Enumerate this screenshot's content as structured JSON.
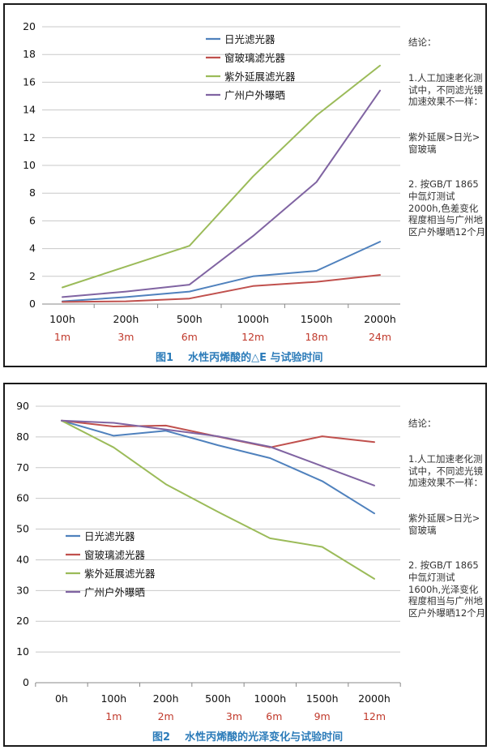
{
  "charts_meta": {
    "series_colors": [
      "#4f81bd",
      "#c0504d",
      "#9bbb59",
      "#8064a2"
    ],
    "sub_label_color": "#c0392b",
    "caption_color": "#2b7bb9"
  },
  "notes": [
    {
      "heading": "结论：",
      "lines": [
        "1.人工加速老化测试中，不同滤光镜加速效果不一样：",
        "紫外延展>日光>窗玻璃",
        "2. 按GB/T 1865中氙灯测试2000h,色差变化程度相当与广州地区户外曝晒12个月"
      ]
    },
    {
      "heading": "结论：",
      "lines": [
        "1.人工加速老化测试中，不同滤光镜加速效果不一样：",
        "紫外延展>日光>窗玻璃",
        "2. 按GB/T 1865中氙灯测试1600h,光泽变化程度相当与广州地区户外曝晒12个月"
      ]
    }
  ],
  "chart_data": [
    {
      "type": "line",
      "title": "图1    水性丙烯酸的△E 与试验时间",
      "categories": [
        "100h",
        "200h",
        "500h",
        "1000h",
        "1500h",
        "2000h"
      ],
      "category_sublabels": [
        "1m",
        "3m",
        "6m",
        "12m",
        "18m",
        "24m"
      ],
      "ylim": [
        0,
        20
      ],
      "yticks": [
        0,
        2,
        4,
        6,
        8,
        10,
        12,
        14,
        16,
        18,
        20
      ],
      "grid": true,
      "legend_position": "top-left",
      "series": [
        {
          "name": "日光滤光器",
          "values": [
            0.2,
            0.5,
            0.9,
            2.0,
            2.4,
            4.5
          ]
        },
        {
          "name": "窗玻璃滤光器",
          "values": [
            0.15,
            0.2,
            0.4,
            1.3,
            1.6,
            2.1
          ]
        },
        {
          "name": "紫外延展滤光器",
          "values": [
            1.2,
            2.7,
            4.2,
            9.2,
            13.6,
            17.2
          ]
        },
        {
          "name": "广州户外曝晒",
          "values": [
            0.5,
            0.9,
            1.4,
            4.9,
            8.8,
            15.4
          ]
        }
      ]
    },
    {
      "type": "line",
      "title": "图2    水性丙烯酸的光泽变化与试验时间",
      "categories": [
        "0h",
        "100h",
        "200h",
        "500h",
        "1000h",
        "1500h",
        "2000h"
      ],
      "category_sublabels": [
        "",
        "1m",
        "2m",
        "3m",
        "6m",
        "9m",
        "12m"
      ],
      "ylim": [
        0,
        90
      ],
      "yticks": [
        0,
        10,
        20,
        30,
        40,
        50,
        60,
        70,
        80,
        90
      ],
      "grid": true,
      "legend_position": "center-left",
      "series": [
        {
          "name": "日光滤光器",
          "values": [
            85.3,
            80.4,
            82.0,
            77.3,
            73.1,
            65.6,
            55.1
          ]
        },
        {
          "name": "窗玻璃滤光器",
          "values": [
            85.3,
            83.4,
            83.7,
            80.1,
            76.6,
            80.2,
            78.3
          ]
        },
        {
          "name": "紫外延展滤光器",
          "values": [
            85.3,
            76.6,
            64.6,
            55.6,
            47.0,
            44.2,
            33.8
          ]
        },
        {
          "name": "广州户外曝晒",
          "values": [
            85.3,
            84.6,
            82.4,
            80.2,
            76.8,
            70.5,
            64.2
          ]
        }
      ]
    }
  ]
}
